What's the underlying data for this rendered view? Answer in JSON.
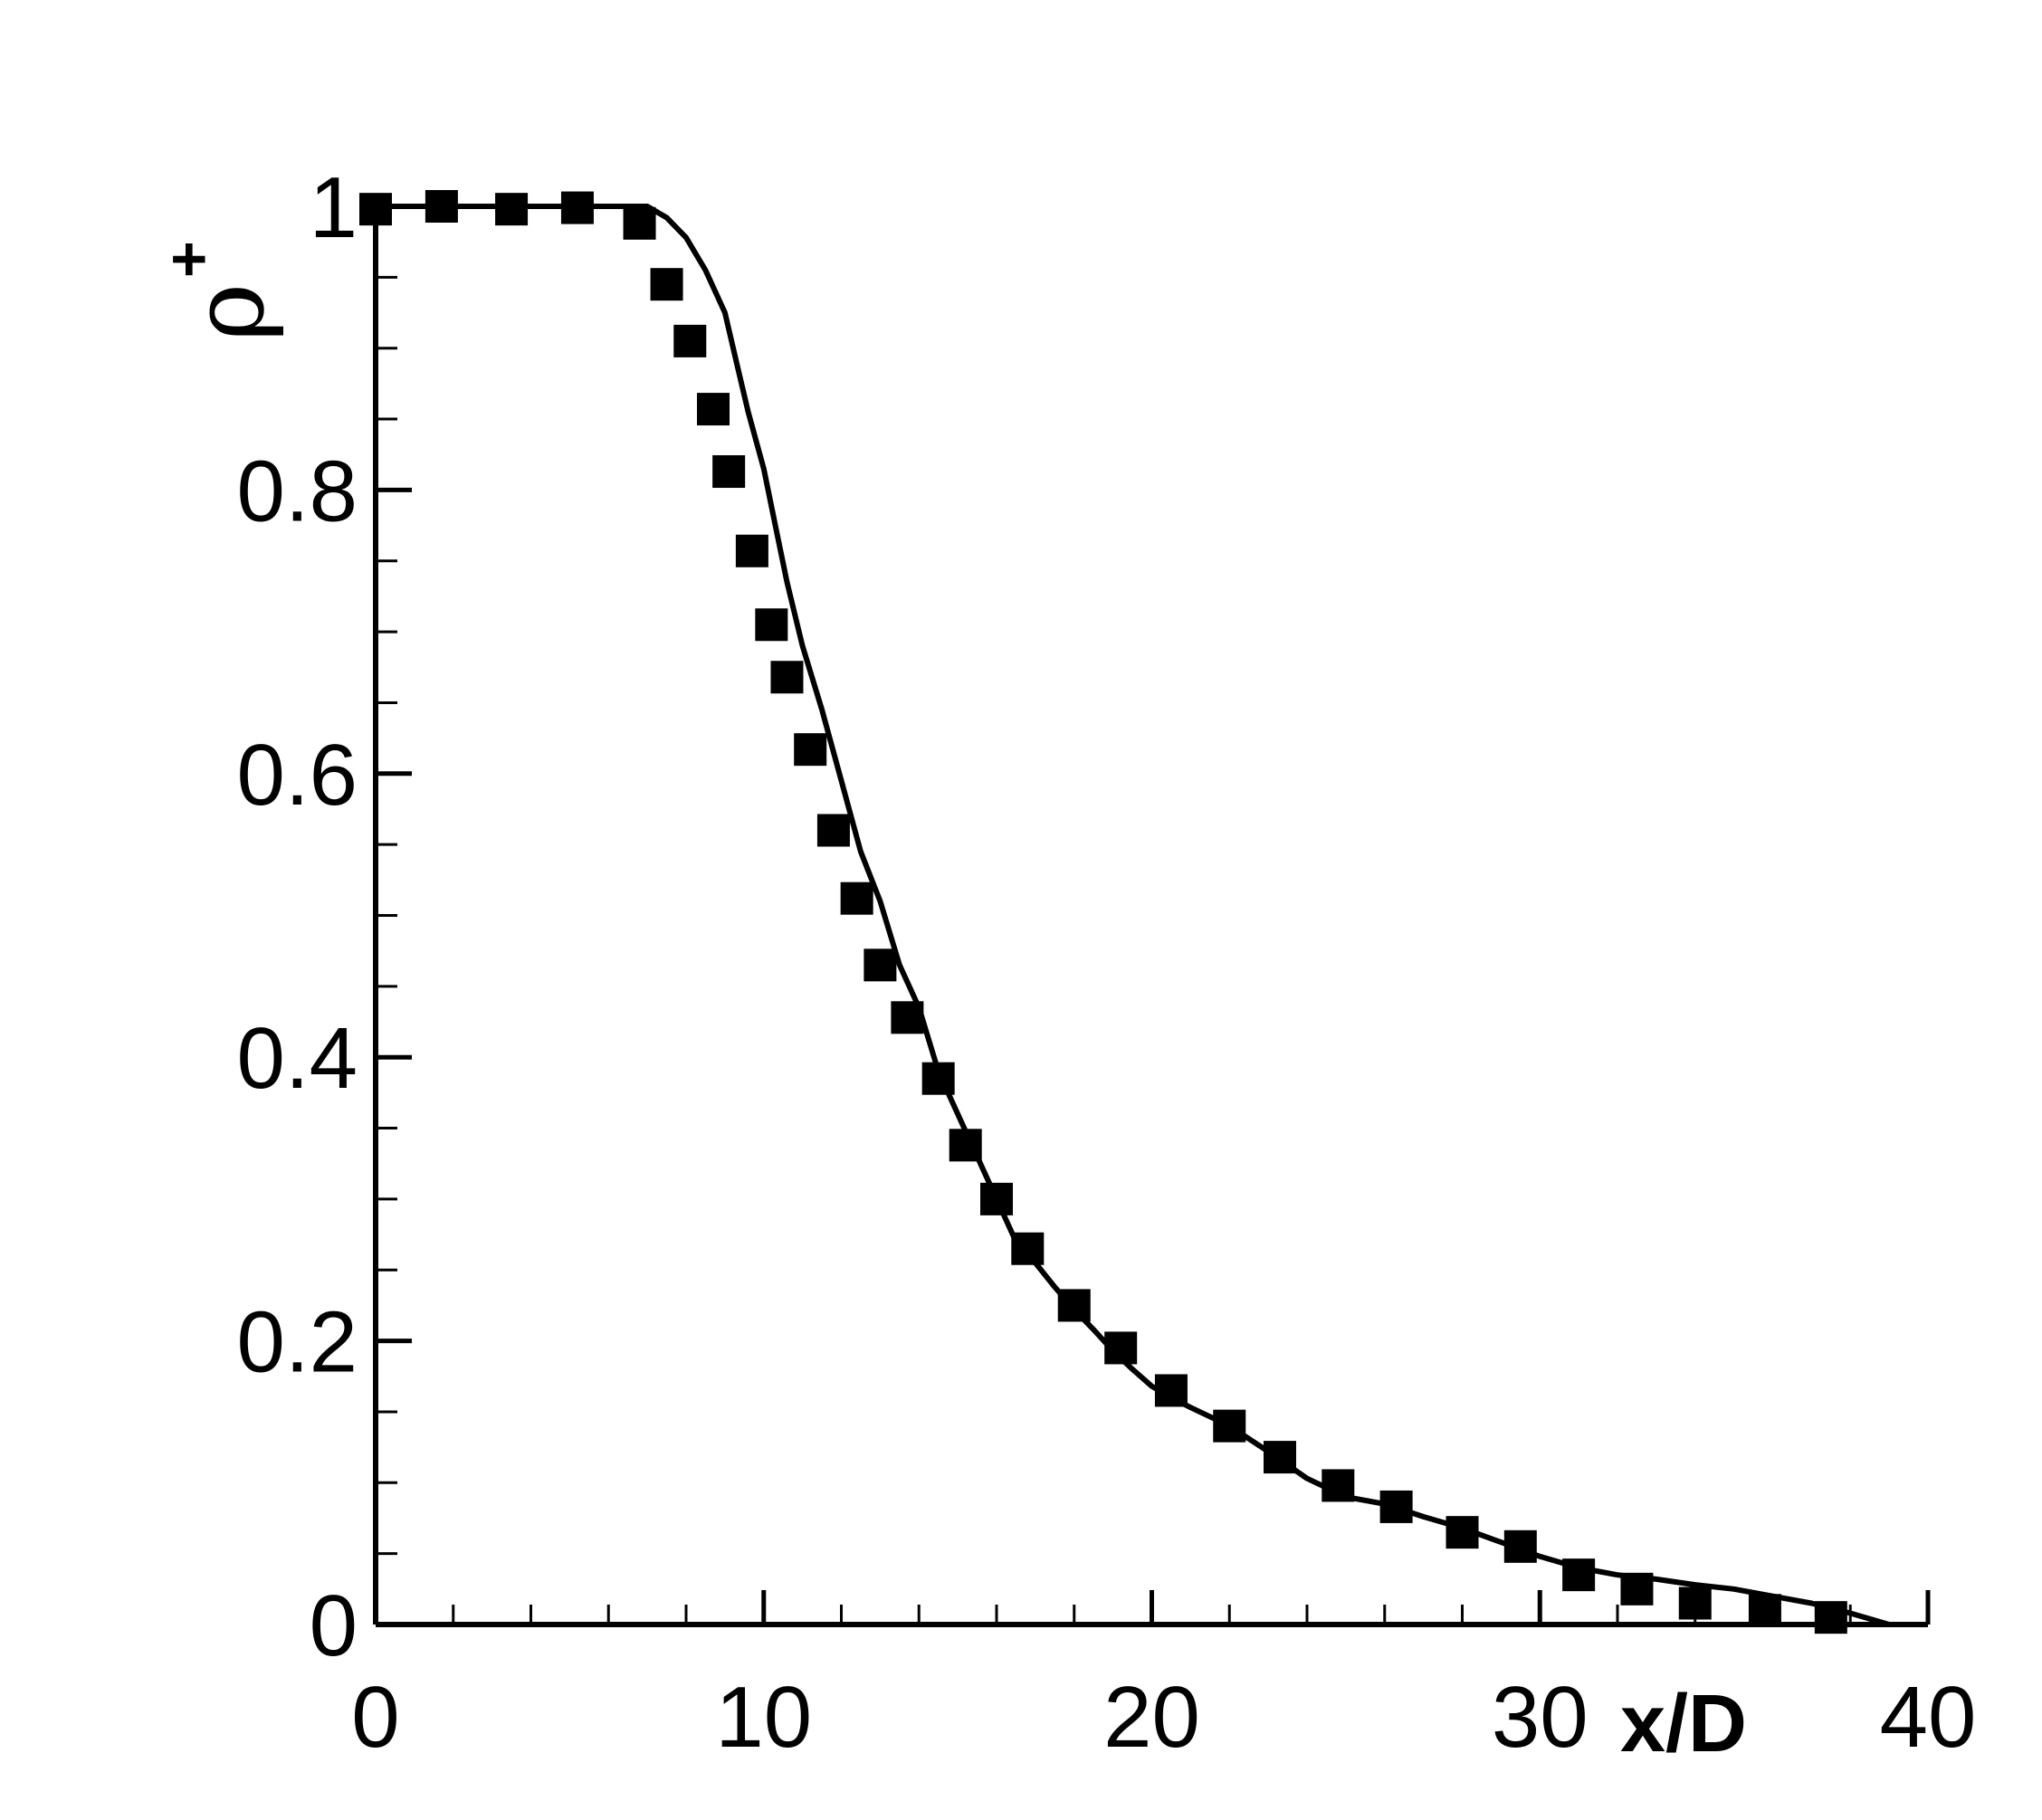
{
  "chart_data": {
    "type": "line",
    "title": "",
    "xlabel": "x/D",
    "ylabel": "ρ",
    "ylabel_superscript": "+",
    "xlim": [
      0,
      40
    ],
    "ylim": [
      0,
      1
    ],
    "x_ticks": [
      0,
      10,
      20,
      30,
      40
    ],
    "x_tick_labels": [
      "0",
      "10",
      "20",
      "30",
      "40"
    ],
    "y_ticks": [
      0,
      0.2,
      0.4,
      0.6,
      0.8,
      1
    ],
    "y_tick_labels": [
      "0",
      "0.2",
      "0.4",
      "0.6",
      "0.8",
      "1"
    ],
    "grid": false,
    "legend": null,
    "colors": {
      "axis": "#000000",
      "series": "#000000"
    },
    "series": [
      {
        "style": "line",
        "x": [
          0,
          2,
          4,
          6,
          7,
          7.5,
          8,
          8.5,
          9,
          9.3,
          9.6,
          10,
          10.3,
          10.6,
          11,
          11.5,
          12,
          12.5,
          13,
          13.5,
          14,
          14.5,
          15,
          15.5,
          16,
          16.5,
          17,
          17.5,
          18,
          18.5,
          19,
          19.5,
          20,
          20.5,
          21,
          22,
          23,
          24,
          25,
          26,
          27,
          28,
          29,
          30,
          31,
          32,
          33,
          34,
          35,
          36,
          37,
          38,
          39
        ],
        "y": [
          1.0,
          1.0,
          1.0,
          1.0,
          1.0,
          0.992,
          0.978,
          0.955,
          0.925,
          0.89,
          0.855,
          0.815,
          0.775,
          0.735,
          0.69,
          0.645,
          0.595,
          0.545,
          0.51,
          0.465,
          0.435,
          0.39,
          0.36,
          0.33,
          0.3,
          0.27,
          0.255,
          0.238,
          0.222,
          0.208,
          0.193,
          0.18,
          0.168,
          0.16,
          0.153,
          0.14,
          0.122,
          0.103,
          0.09,
          0.085,
          0.076,
          0.068,
          0.058,
          0.048,
          0.04,
          0.035,
          0.032,
          0.028,
          0.025,
          0.02,
          0.015,
          0.008,
          0.0
        ]
      },
      {
        "style": "markers",
        "marker": "square",
        "x": [
          0,
          1.7,
          3.5,
          5.2,
          6.8,
          7.5,
          8.1,
          8.7,
          9.1,
          9.7,
          10.2,
          10.6,
          11.2,
          11.8,
          12.4,
          13,
          13.7,
          14.5,
          15.2,
          16,
          16.8,
          18,
          19.2,
          20.5,
          22,
          23.3,
          24.8,
          26.3,
          28,
          29.5,
          31,
          32.5,
          34,
          35.8,
          37.5
        ],
        "y": [
          0.998,
          1.0,
          0.998,
          0.999,
          0.988,
          0.945,
          0.905,
          0.857,
          0.813,
          0.757,
          0.705,
          0.668,
          0.617,
          0.56,
          0.512,
          0.465,
          0.428,
          0.385,
          0.338,
          0.3,
          0.265,
          0.225,
          0.195,
          0.165,
          0.14,
          0.118,
          0.098,
          0.083,
          0.065,
          0.055,
          0.035,
          0.025,
          0.015,
          0.01,
          0.005
        ]
      }
    ]
  }
}
